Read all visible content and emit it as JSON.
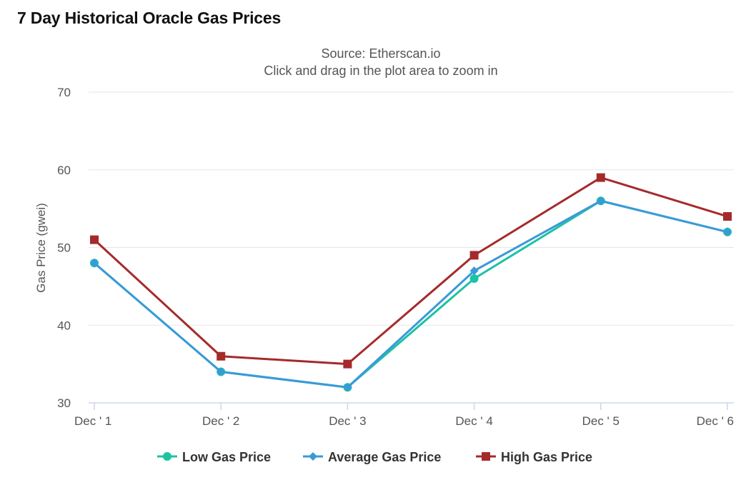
{
  "page": {
    "title": "7 Day Historical Oracle Gas Prices"
  },
  "chart_data": {
    "type": "line",
    "title": "7 Day Historical Oracle Gas Prices",
    "subtitle_lines": [
      "Source: Etherscan.io",
      "Click and drag in the plot area to zoom in"
    ],
    "xlabel": "",
    "ylabel": "Gas Price (gwei)",
    "categories": [
      "Dec ' 1",
      "Dec ' 2",
      "Dec ' 3",
      "Dec ' 4",
      "Dec ' 5",
      "Dec ' 6"
    ],
    "ylim": [
      30,
      70
    ],
    "yticks": [
      30,
      40,
      50,
      60,
      70
    ],
    "grid": true,
    "legend_position": "bottom",
    "series": [
      {
        "name": "Low Gas Price",
        "values": [
          48,
          34,
          32,
          46,
          56,
          52
        ],
        "color": "#1cc2a4",
        "marker": "circle"
      },
      {
        "name": "Average Gas Price",
        "values": [
          48,
          34,
          32,
          47,
          56,
          52
        ],
        "color": "#3a9ad9",
        "marker": "diamond"
      },
      {
        "name": "High Gas Price",
        "values": [
          51,
          36,
          35,
          49,
          59,
          54
        ],
        "color": "#a52a2a",
        "marker": "square"
      }
    ]
  }
}
